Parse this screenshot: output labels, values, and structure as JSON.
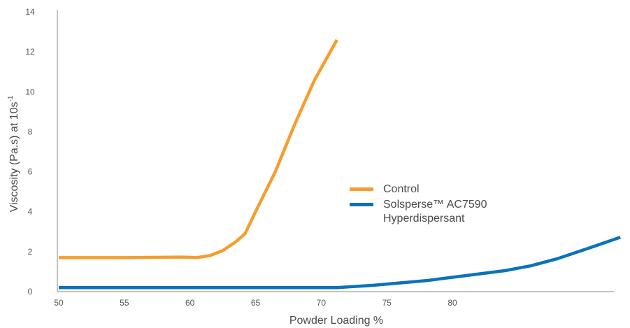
{
  "chart_data": {
    "type": "line",
    "xlabel": "Powder Loading %",
    "ylabel": "Viscosity (Pa.s) at 10s",
    "ylabel_sup": "-1",
    "xlim": [
      50,
      93
    ],
    "ylim": [
      0,
      14
    ],
    "x_ticks": [
      "50",
      "55",
      "60",
      "65",
      "70",
      "75",
      "80"
    ],
    "y_ticks": [
      "0",
      "2",
      "4",
      "6",
      "8",
      "10",
      "12",
      "14"
    ],
    "grid": false,
    "legend_position": "center-right",
    "series": [
      {
        "name": "Control",
        "color": "#F59E2F",
        "points": [
          [
            50,
            1.7
          ],
          [
            55,
            1.7
          ],
          [
            58,
            1.72
          ],
          [
            59.5,
            1.73
          ],
          [
            60.5,
            1.7
          ],
          [
            61.5,
            1.8
          ],
          [
            62.5,
            2.05
          ],
          [
            63.5,
            2.5
          ],
          [
            64.2,
            2.9
          ],
          [
            65,
            4.0
          ],
          [
            66.5,
            6.0
          ],
          [
            68,
            8.4
          ],
          [
            69.5,
            10.6
          ],
          [
            71.2,
            12.6
          ]
        ]
      },
      {
        "name": "Solsperse™ AC7590\nHyperdispersant",
        "color": "#0C72BA",
        "points": [
          [
            50,
            0.2
          ],
          [
            60,
            0.2
          ],
          [
            71.2,
            0.2
          ],
          [
            74,
            0.32
          ],
          [
            78,
            0.55
          ],
          [
            81,
            0.8
          ],
          [
            84,
            1.05
          ],
          [
            86,
            1.3
          ],
          [
            88,
            1.65
          ],
          [
            90.5,
            2.2
          ],
          [
            92.8,
            2.72
          ]
        ]
      }
    ]
  }
}
